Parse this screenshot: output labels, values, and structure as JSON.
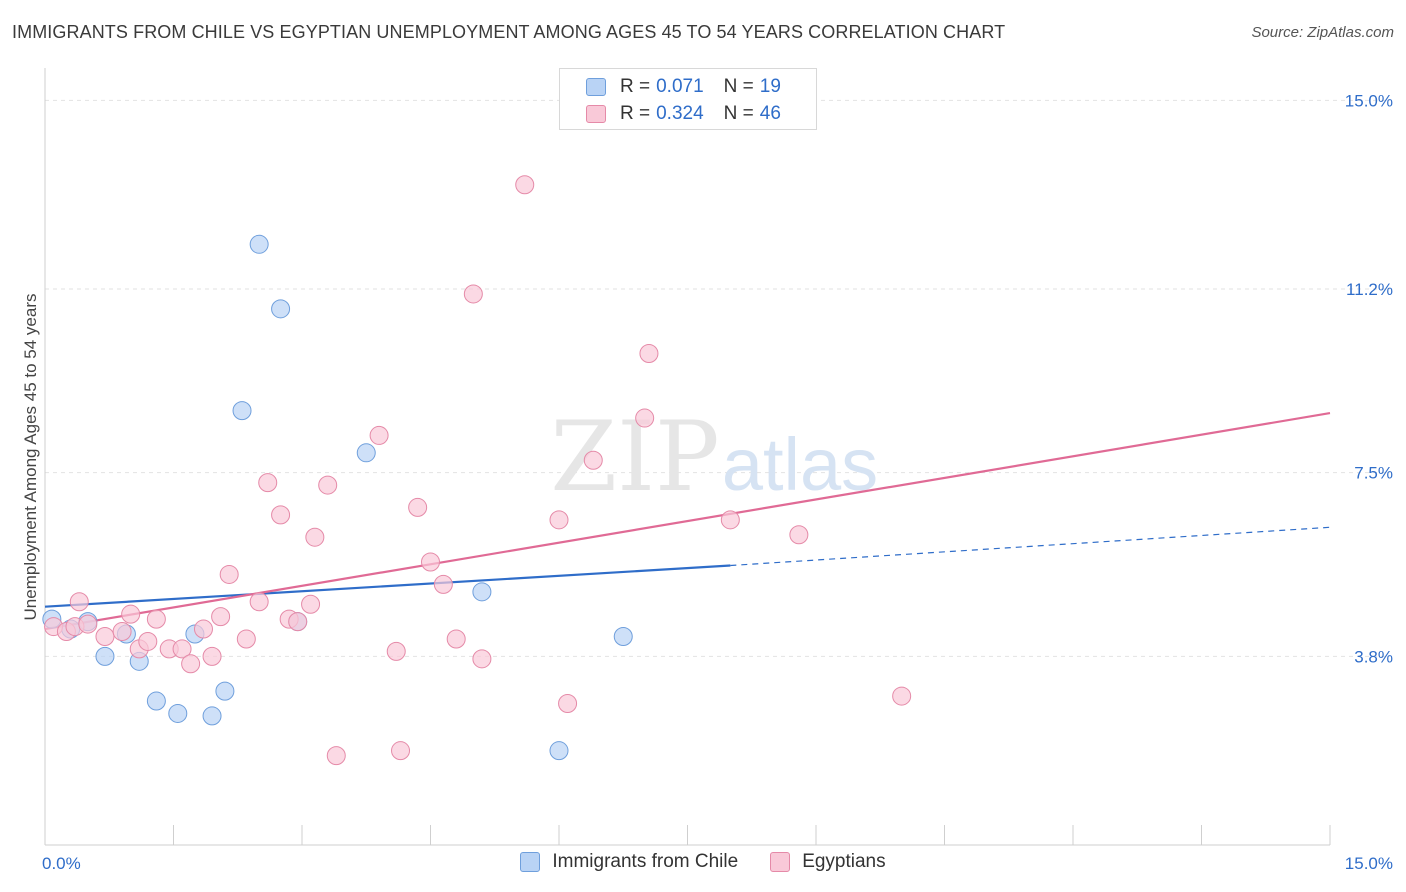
{
  "header": {
    "title": "IMMIGRANTS FROM CHILE VS EGYPTIAN UNEMPLOYMENT AMONG AGES 45 TO 54 YEARS CORRELATION CHART",
    "source": "Source: ZipAtlas.com"
  },
  "watermark": {
    "zip": "ZIP",
    "atlas": "atlas"
  },
  "colors": {
    "chile_fill": "#b9d3f5",
    "chile_stroke": "#6f9fdc",
    "chile_line": "#2f6dc9",
    "egypt_fill": "#f9c9d8",
    "egypt_stroke": "#e58aa8",
    "egypt_line": "#e06a95",
    "value_text": "#2f6dc9",
    "grid": "#e2e2e2"
  },
  "legend_top": {
    "rows": [
      {
        "r_label": "R =",
        "r_value": "0.071",
        "n_label": "N =",
        "n_value": "19",
        "series": "chile"
      },
      {
        "r_label": "R =",
        "r_value": "0.324",
        "n_label": "N =",
        "n_value": "46",
        "series": "egypt"
      }
    ]
  },
  "legend_bottom": {
    "items": [
      {
        "label": "Immigrants from Chile",
        "series": "chile"
      },
      {
        "label": "Egyptians",
        "series": "egypt"
      }
    ]
  },
  "chart_data": {
    "type": "scatter",
    "title": "IMMIGRANTS FROM CHILE VS EGYPTIAN UNEMPLOYMENT AMONG AGES 45 TO 54 YEARS CORRELATION CHART",
    "xlabel": "",
    "ylabel": "Unemployment Among Ages 45 to 54 years",
    "xlim": [
      0,
      15
    ],
    "ylim": [
      0,
      15.45
    ],
    "x_tick_labels": [
      {
        "value": 0,
        "label": "0.0%"
      },
      {
        "value": 15,
        "label": "15.0%"
      }
    ],
    "y_tick_labels": [
      {
        "value": 3.8,
        "label": "3.8%"
      },
      {
        "value": 7.5,
        "label": "7.5%"
      },
      {
        "value": 11.2,
        "label": "11.2%"
      },
      {
        "value": 15.0,
        "label": "15.0%"
      }
    ],
    "grid": true,
    "legend_position": "top-center",
    "series": [
      {
        "name": "Immigrants from Chile",
        "key": "chile",
        "points": [
          [
            0.08,
            4.55
          ],
          [
            0.3,
            4.35
          ],
          [
            0.5,
            4.5
          ],
          [
            0.7,
            3.8
          ],
          [
            0.95,
            4.25
          ],
          [
            1.1,
            3.7
          ],
          [
            1.3,
            2.9
          ],
          [
            1.55,
            2.65
          ],
          [
            1.75,
            4.25
          ],
          [
            1.95,
            2.6
          ],
          [
            2.1,
            3.1
          ],
          [
            2.3,
            8.75
          ],
          [
            2.5,
            12.1
          ],
          [
            2.75,
            10.8
          ],
          [
            2.95,
            4.5
          ],
          [
            3.75,
            7.9
          ],
          [
            5.1,
            5.1
          ],
          [
            6.0,
            1.9
          ],
          [
            6.75,
            4.2
          ]
        ],
        "trend": {
          "x0": 0,
          "y0": 4.8,
          "x1": 8.0,
          "y1": 5.63,
          "dash_x1": 15.0,
          "dash_y1": 6.4
        }
      },
      {
        "name": "Egyptians",
        "key": "egypt",
        "points": [
          [
            0.1,
            4.4
          ],
          [
            0.25,
            4.3
          ],
          [
            0.35,
            4.4
          ],
          [
            0.4,
            4.9
          ],
          [
            0.5,
            4.45
          ],
          [
            0.7,
            4.2
          ],
          [
            0.9,
            4.3
          ],
          [
            1.0,
            4.65
          ],
          [
            1.1,
            3.95
          ],
          [
            1.2,
            4.1
          ],
          [
            1.3,
            4.55
          ],
          [
            1.45,
            3.95
          ],
          [
            1.6,
            3.95
          ],
          [
            1.7,
            3.65
          ],
          [
            1.85,
            4.35
          ],
          [
            1.95,
            3.8
          ],
          [
            2.05,
            4.6
          ],
          [
            2.15,
            5.45
          ],
          [
            2.35,
            4.15
          ],
          [
            2.5,
            4.9
          ],
          [
            2.6,
            7.3
          ],
          [
            2.75,
            6.65
          ],
          [
            2.85,
            4.55
          ],
          [
            2.95,
            4.5
          ],
          [
            3.1,
            4.85
          ],
          [
            3.15,
            6.2
          ],
          [
            3.3,
            7.25
          ],
          [
            3.4,
            1.8
          ],
          [
            3.9,
            8.25
          ],
          [
            4.1,
            3.9
          ],
          [
            4.15,
            1.9
          ],
          [
            4.35,
            6.8
          ],
          [
            4.5,
            5.7
          ],
          [
            4.65,
            5.25
          ],
          [
            4.8,
            4.15
          ],
          [
            5.0,
            11.1
          ],
          [
            5.1,
            3.75
          ],
          [
            5.6,
            13.3
          ],
          [
            6.0,
            6.55
          ],
          [
            6.1,
            2.85
          ],
          [
            6.4,
            7.75
          ],
          [
            7.0,
            8.6
          ],
          [
            7.05,
            9.9
          ],
          [
            8.0,
            6.55
          ],
          [
            8.8,
            6.25
          ],
          [
            10.0,
            3.0
          ]
        ],
        "trend": {
          "x0": 0,
          "y0": 4.35,
          "x1": 15.0,
          "y1": 8.7
        }
      }
    ]
  }
}
